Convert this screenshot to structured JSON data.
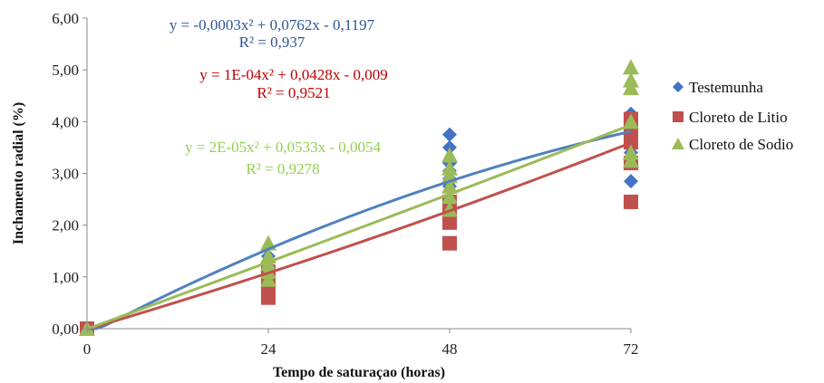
{
  "chart_data": {
    "type": "scatter",
    "xlabel": "Tempo de saturaçao (horas)",
    "ylabel": "Inchamento radial (%)",
    "xlim": [
      0,
      72
    ],
    "ylim": [
      0,
      6
    ],
    "x_ticks": [
      "0",
      "24",
      "48",
      "72"
    ],
    "y_ticks": [
      "0,00",
      "1,00",
      "2,00",
      "3,00",
      "4,00",
      "5,00",
      "6,00"
    ],
    "legend_position": "right",
    "grid": false,
    "series": [
      {
        "name": "Testemunha",
        "marker": "diamond",
        "color": "#4472C4",
        "trend_color": "#4F81BD",
        "equation": "y = -0,0003x² + 0,0762x - 0,1197",
        "r2": "R² = 0,937",
        "coef": [
          -0.0003,
          0.0762,
          -0.1197
        ],
        "points": [
          [
            0,
            0
          ],
          [
            24,
            0.95
          ],
          [
            24,
            1.1
          ],
          [
            24,
            1.2
          ],
          [
            24,
            1.3
          ],
          [
            24,
            1.4
          ],
          [
            48,
            2.5
          ],
          [
            48,
            2.75
          ],
          [
            48,
            2.9
          ],
          [
            48,
            3.05
          ],
          [
            48,
            3.2
          ],
          [
            48,
            3.5
          ],
          [
            48,
            3.75
          ],
          [
            72,
            2.85
          ],
          [
            72,
            3.4
          ],
          [
            72,
            3.6
          ],
          [
            72,
            3.9
          ],
          [
            72,
            4.15
          ]
        ]
      },
      {
        "name": "Cloreto de Litio",
        "marker": "square",
        "color": "#C0504D",
        "trend_color": "#C0504D",
        "equation": "y = 1E-04x² + 0,0428x - 0,009",
        "r2": "R² = 0,9521",
        "coef": [
          0.0001,
          0.0428,
          -0.009
        ],
        "points": [
          [
            0,
            0
          ],
          [
            24,
            0.6
          ],
          [
            24,
            0.75
          ],
          [
            24,
            0.9
          ],
          [
            24,
            1.0
          ],
          [
            24,
            1.1
          ],
          [
            48,
            1.65
          ],
          [
            48,
            2.05
          ],
          [
            48,
            2.2
          ],
          [
            48,
            2.3
          ],
          [
            48,
            2.45
          ],
          [
            72,
            2.45
          ],
          [
            72,
            3.2
          ],
          [
            72,
            3.6
          ],
          [
            72,
            3.85
          ],
          [
            72,
            4.05
          ]
        ]
      },
      {
        "name": "Cloreto de Sodio",
        "marker": "triangle",
        "color": "#9BBB59",
        "trend_color": "#9BBB59",
        "equation": "y = 2E-05x² + 0,0533x - 0,0054",
        "r2": "R² = 0,9278",
        "coef": [
          2e-05,
          0.0533,
          -0.0054
        ],
        "points": [
          [
            0,
            0
          ],
          [
            24,
            0.95
          ],
          [
            24,
            1.1
          ],
          [
            24,
            1.25
          ],
          [
            24,
            1.4
          ],
          [
            24,
            1.65
          ],
          [
            48,
            2.3
          ],
          [
            48,
            2.55
          ],
          [
            48,
            2.75
          ],
          [
            48,
            2.95
          ],
          [
            48,
            3.1
          ],
          [
            48,
            3.35
          ],
          [
            72,
            3.25
          ],
          [
            72,
            3.4
          ],
          [
            72,
            4.0
          ],
          [
            72,
            4.65
          ],
          [
            72,
            4.8
          ],
          [
            72,
            5.05
          ]
        ]
      }
    ]
  }
}
